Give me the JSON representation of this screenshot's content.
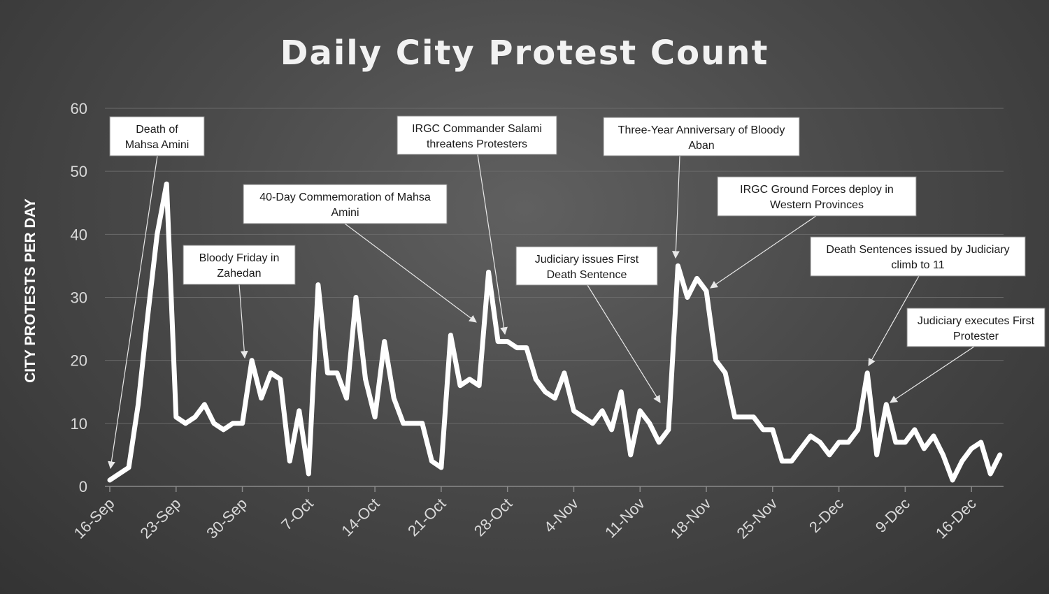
{
  "chart_data": {
    "type": "line",
    "title": "Daily City Protest Count",
    "xlabel": "",
    "ylabel": "CITY PROTESTS PER DAY",
    "ylim": [
      0,
      60
    ],
    "yticks": [
      0,
      10,
      20,
      30,
      40,
      50,
      60
    ],
    "grid": true,
    "x_start": "16-Sep",
    "xtick_labels": [
      "16-Sep",
      "23-Sep",
      "30-Sep",
      "7-Oct",
      "14-Oct",
      "21-Oct",
      "28-Oct",
      "4-Nov",
      "11-Nov",
      "18-Nov",
      "25-Nov",
      "2-Dec",
      "9-Dec",
      "16-Dec"
    ],
    "xtick_day_index": [
      0,
      7,
      14,
      21,
      28,
      35,
      42,
      49,
      56,
      63,
      70,
      77,
      84,
      91
    ],
    "series": [
      {
        "name": "City protests per day",
        "color": "#ffffff",
        "values": [
          1,
          2,
          3,
          13,
          27,
          40,
          48,
          11,
          10,
          11,
          13,
          10,
          9,
          10,
          10,
          20,
          14,
          18,
          17,
          4,
          12,
          2,
          32,
          18,
          18,
          14,
          30,
          17,
          11,
          23,
          14,
          10,
          10,
          10,
          4,
          3,
          24,
          16,
          17,
          16,
          34,
          23,
          23,
          22,
          22,
          17,
          15,
          14,
          18,
          12,
          11,
          10,
          12,
          9,
          15,
          5,
          12,
          10,
          7,
          9,
          35,
          30,
          33,
          31,
          20,
          18,
          11,
          11,
          11,
          9,
          9,
          4,
          4,
          6,
          8,
          7,
          5,
          7,
          7,
          9,
          18,
          5,
          13,
          7,
          7,
          9,
          6,
          8,
          5,
          1,
          4,
          6,
          7,
          2,
          5
        ]
      }
    ],
    "annotations": [
      {
        "lines": [
          "Death of",
          "Mahsa Amini"
        ],
        "day": 0,
        "value": 1
      },
      {
        "lines": [
          "Bloody Friday in",
          "Zahedan"
        ],
        "day": 14,
        "value": 20
      },
      {
        "lines": [
          "40-Day Commemoration of Mahsa",
          "Amini"
        ],
        "day": 39,
        "value": 26
      },
      {
        "lines": [
          "IRGC Commander Salami",
          "threatens Protesters"
        ],
        "day": 42,
        "value": 23
      },
      {
        "lines": [
          "Judiciary issues First",
          "Death Sentence"
        ],
        "day": 58,
        "value": 13
      },
      {
        "lines": [
          "Three-Year Anniversary of Bloody",
          "Aban"
        ],
        "day": 60,
        "value": 36
      },
      {
        "lines": [
          "IRGC Ground Forces deploy in",
          "Western Provinces"
        ],
        "day": 63,
        "value": 31
      },
      {
        "lines": [
          "Death Sentences issued by Judiciary",
          "climb to 11"
        ],
        "day": 80,
        "value": 19
      },
      {
        "lines": [
          "Judiciary executes First",
          "Protester"
        ],
        "day": 82,
        "value": 13
      }
    ]
  }
}
